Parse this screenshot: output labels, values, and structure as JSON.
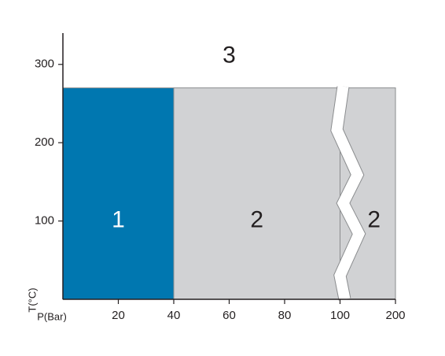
{
  "chart_data": {
    "type": "region",
    "xlabel": "P(Bar)",
    "ylabel": "T(°C)",
    "xlim": [
      0,
      200
    ],
    "xticks": [
      20,
      40,
      60,
      80,
      100,
      200
    ],
    "ylim": [
      0,
      340
    ],
    "yticks": [
      100,
      200,
      300
    ],
    "regions": [
      {
        "label": "1",
        "x": [
          0,
          40
        ],
        "y": [
          0,
          270
        ],
        "color": "#0077b0"
      },
      {
        "label": "2",
        "x": [
          40,
          100
        ],
        "y": [
          0,
          270
        ],
        "color": "#d1d2d4"
      },
      {
        "label": "2",
        "x": [
          100,
          200
        ],
        "y": [
          0,
          270
        ],
        "color": "#d1d2d4"
      }
    ],
    "annotations": [
      {
        "text": "3",
        "x": 60,
        "y": 310
      }
    ]
  }
}
